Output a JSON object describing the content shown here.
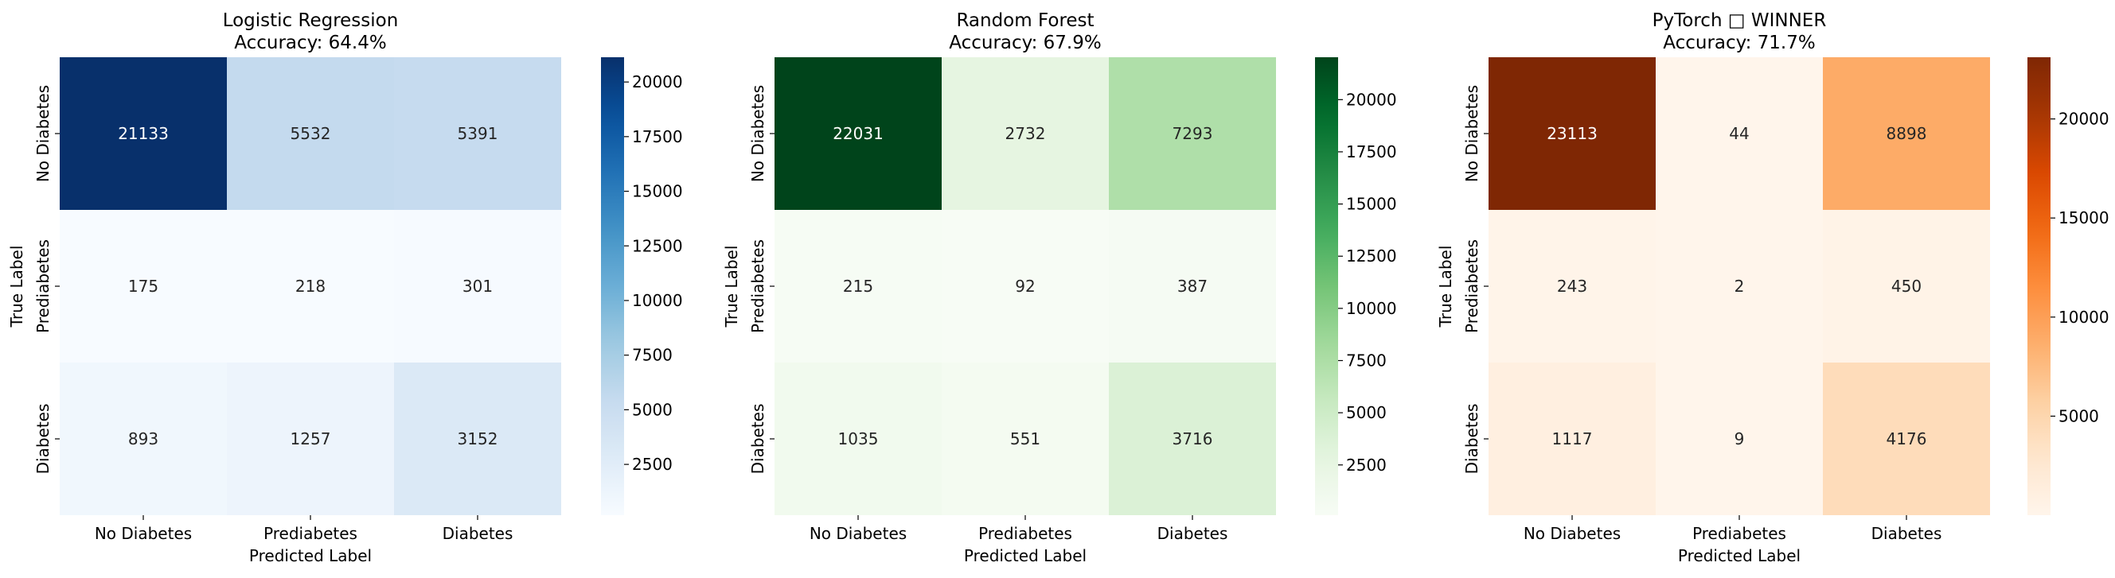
{
  "chart_data": [
    {
      "type": "heatmap",
      "title": "Logistic Regression",
      "subtitle": "Accuracy: 64.4%",
      "xlabel": "Predicted Label",
      "ylabel": "True Label",
      "x_categories": [
        "No Diabetes",
        "Prediabetes",
        "Diabetes"
      ],
      "y_categories": [
        "No Diabetes",
        "Prediabetes",
        "Diabetes"
      ],
      "values": [
        [
          21133,
          5532,
          5391
        ],
        [
          175,
          218,
          301
        ],
        [
          893,
          1257,
          3152
        ]
      ],
      "colormap": "Blues",
      "colorbar": {
        "vmin": 175,
        "vmax": 21133,
        "ticks": [
          2500,
          5000,
          7500,
          10000,
          12500,
          15000,
          17500,
          20000
        ]
      }
    },
    {
      "type": "heatmap",
      "title": "Random Forest",
      "subtitle": "Accuracy: 67.9%",
      "xlabel": "Predicted Label",
      "ylabel": "True Label",
      "x_categories": [
        "No Diabetes",
        "Prediabetes",
        "Diabetes"
      ],
      "y_categories": [
        "No Diabetes",
        "Prediabetes",
        "Diabetes"
      ],
      "values": [
        [
          22031,
          2732,
          7293
        ],
        [
          215,
          92,
          387
        ],
        [
          1035,
          551,
          3716
        ]
      ],
      "colormap": "Greens",
      "colorbar": {
        "vmin": 92,
        "vmax": 22031,
        "ticks": [
          2500,
          5000,
          7500,
          10000,
          12500,
          15000,
          17500,
          20000
        ]
      }
    },
    {
      "type": "heatmap",
      "title": "PyTorch □ WINNER",
      "subtitle": "Accuracy: 71.7%",
      "xlabel": "Predicted Label",
      "ylabel": "True Label",
      "x_categories": [
        "No Diabetes",
        "Prediabetes",
        "Diabetes"
      ],
      "y_categories": [
        "No Diabetes",
        "Prediabetes",
        "Diabetes"
      ],
      "values": [
        [
          23113,
          44,
          8898
        ],
        [
          243,
          2,
          450
        ],
        [
          1117,
          9,
          4176
        ]
      ],
      "colormap": "Oranges",
      "colorbar": {
        "vmin": 2,
        "vmax": 23113,
        "ticks": [
          5000,
          10000,
          15000,
          20000
        ]
      }
    }
  ],
  "colormaps": {
    "Blues": [
      "#f7fbff",
      "#deebf7",
      "#c6dbef",
      "#9ecae1",
      "#6baed6",
      "#4292c6",
      "#2171b5",
      "#08519c",
      "#08306b"
    ],
    "Greens": [
      "#f7fcf5",
      "#e5f5e0",
      "#c7e9c0",
      "#a1d99b",
      "#74c476",
      "#41ab5d",
      "#238b45",
      "#006d2c",
      "#00441b"
    ],
    "Oranges": [
      "#fff5eb",
      "#fee6ce",
      "#fdd0a2",
      "#fdae6b",
      "#fd8d3c",
      "#f16913",
      "#d94801",
      "#a63603",
      "#7f2704"
    ]
  }
}
